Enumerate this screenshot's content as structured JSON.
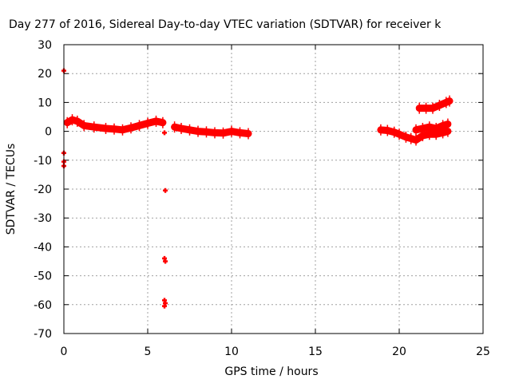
{
  "chart_data": {
    "type": "scatter",
    "title": "Day 277 of 2016, Sidereal Day-to-day VTEC variation (SDTVAR) for receiver k",
    "xlabel": "GPS time / hours",
    "ylabel": "SDTVAR / TECUs",
    "xlim": [
      0,
      25
    ],
    "ylim": [
      -70,
      30
    ],
    "xticks": [
      0,
      5,
      10,
      15,
      20,
      25
    ],
    "yticks": [
      30,
      20,
      10,
      0,
      -10,
      -20,
      -30,
      -40,
      -50,
      -60,
      -70
    ],
    "grid": true,
    "series_color": "#ff0000",
    "segments": [
      {
        "points": [
          [
            0.2,
            3.0
          ],
          [
            0.5,
            4.0
          ],
          [
            0.8,
            3.5
          ],
          [
            1.2,
            2.0
          ],
          [
            1.8,
            1.5
          ],
          [
            2.5,
            1.0
          ],
          [
            3.0,
            0.8
          ],
          [
            3.5,
            0.5
          ],
          [
            4.0,
            1.2
          ],
          [
            4.5,
            2.0
          ],
          [
            5.0,
            2.8
          ],
          [
            5.5,
            3.5
          ],
          [
            5.9,
            3.0
          ]
        ]
      },
      {
        "points": [
          [
            6.6,
            1.5
          ],
          [
            7.0,
            1.0
          ],
          [
            7.5,
            0.5
          ],
          [
            8.0,
            0.0
          ],
          [
            8.5,
            -0.2
          ],
          [
            9.0,
            -0.5
          ],
          [
            9.5,
            -0.6
          ],
          [
            10.0,
            0.0
          ],
          [
            10.5,
            -0.5
          ],
          [
            11.0,
            -0.8
          ]
        ]
      },
      {
        "points": [
          [
            18.9,
            0.5
          ],
          [
            19.3,
            0.3
          ],
          [
            19.7,
            -0.3
          ],
          [
            20.0,
            -1.0
          ],
          [
            20.4,
            -2.0
          ],
          [
            20.7,
            -2.5
          ],
          [
            21.0,
            -3.0
          ],
          [
            21.4,
            -1.5
          ],
          [
            21.8,
            -1.0
          ],
          [
            22.2,
            -1.0
          ],
          [
            22.6,
            -0.5
          ],
          [
            22.9,
            0.0
          ]
        ]
      },
      {
        "points": [
          [
            21.0,
            0.5
          ],
          [
            21.4,
            1.0
          ],
          [
            21.8,
            1.5
          ],
          [
            22.2,
            1.0
          ],
          [
            22.6,
            2.0
          ],
          [
            22.9,
            2.5
          ]
        ]
      },
      {
        "points": [
          [
            21.2,
            8.0
          ],
          [
            21.6,
            8.0
          ],
          [
            22.0,
            8.0
          ],
          [
            22.4,
            9.0
          ],
          [
            22.8,
            10.0
          ],
          [
            23.0,
            10.5
          ]
        ]
      }
    ],
    "points": [
      [
        0.0,
        21.0
      ],
      [
        0.0,
        -7.5
      ],
      [
        0.0,
        -10.5
      ],
      [
        0.0,
        -12.0
      ],
      [
        6.0,
        -0.5
      ],
      [
        6.05,
        -20.5
      ],
      [
        6.0,
        -44.0
      ],
      [
        6.05,
        -45.0
      ],
      [
        6.0,
        -58.5
      ],
      [
        6.05,
        -59.5
      ],
      [
        6.0,
        -60.5
      ]
    ]
  }
}
